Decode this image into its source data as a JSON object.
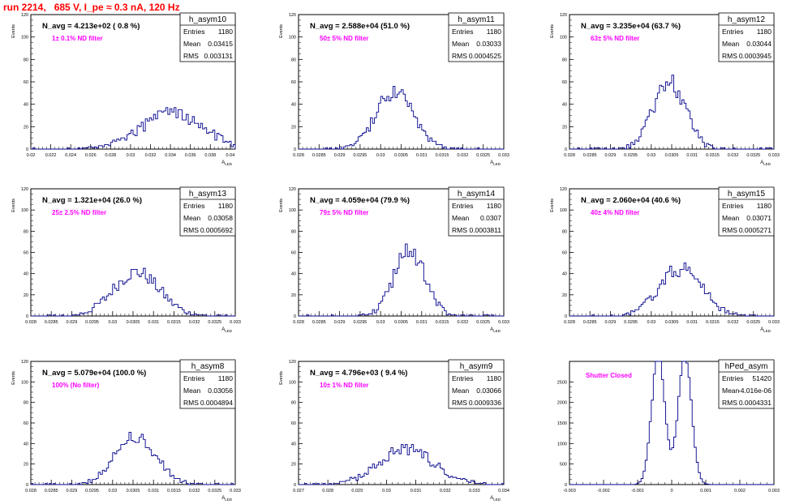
{
  "title": "run 2214,   685 V, I_pe ≈ 0.3 nA, 120 Hz",
  "chart_data": [
    {
      "type": "histogram",
      "name": "h_asym10",
      "nlabel": "N_avg = 4.213e+02 ( 0.8 %)",
      "filter": "1± 0.1% ND filter",
      "stats": {
        "Entries": "1180",
        "Mean": "0.03415",
        "RMS": "0.003131"
      },
      "xlabel": "A_LED",
      "ylabel": "Events",
      "xlim": [
        0.02,
        0.0405
      ],
      "ylim": [
        0,
        120
      ],
      "xticks": [
        "0.02",
        "0.022",
        "0.024",
        "0.026",
        "0.028",
        "0.03",
        "0.032",
        "0.034",
        "0.036",
        "0.038",
        "0.04"
      ],
      "yticks": [
        "0",
        "20",
        "40",
        "60",
        "80",
        "100",
        "120"
      ],
      "mean": 0.03415,
      "rms": 0.003131,
      "entries": 1180,
      "nbins": 100
    },
    {
      "type": "histogram",
      "name": "h_asym11",
      "nlabel": "N_avg = 2.588e+04 (51.0 %)",
      "filter": "50± 5% ND filter",
      "stats": {
        "Entries": "1180",
        "Mean": "0.03033",
        "RMS": "0.0004525"
      },
      "xlabel": "A_LED",
      "ylabel": "Events",
      "xlim": [
        0.028,
        0.033
      ],
      "ylim": [
        0,
        120
      ],
      "xticks": [
        "0.028",
        "0.0285",
        "0.029",
        "0.0295",
        "0.03",
        "0.0305",
        "0.031",
        "0.0315",
        "0.032",
        "0.0325",
        "0.033"
      ],
      "yticks": [
        "0",
        "20",
        "40",
        "60",
        "80",
        "100",
        "120"
      ],
      "mean": 0.03033,
      "rms": 0.0004525,
      "entries": 1180,
      "nbins": 100
    },
    {
      "type": "histogram",
      "name": "h_asym12",
      "nlabel": "N_avg = 3.235e+04 (63.7 %)",
      "filter": "63± 5% ND filter",
      "stats": {
        "Entries": "1180",
        "Mean": "0.03044",
        "RMS": "0.0003945"
      },
      "xlabel": "A_LED",
      "ylabel": "Events",
      "xlim": [
        0.028,
        0.033
      ],
      "ylim": [
        0,
        120
      ],
      "xticks": [
        "0.028",
        "0.0285",
        "0.029",
        "0.0295",
        "0.03",
        "0.0305",
        "0.031",
        "0.0315",
        "0.032",
        "0.0325",
        "0.033"
      ],
      "yticks": [
        "0",
        "20",
        "40",
        "60",
        "80",
        "100",
        "120"
      ],
      "mean": 0.03044,
      "rms": 0.0003945,
      "entries": 1180,
      "nbins": 100
    },
    {
      "type": "histogram",
      "name": "h_asym13",
      "nlabel": "N_avg = 1.321e+04 (26.0 %)",
      "filter": "25± 2.5% ND filter",
      "stats": {
        "Entries": "1180",
        "Mean": "0.03058",
        "RMS": "0.0005692"
      },
      "xlabel": "A_LED",
      "ylabel": "Events",
      "xlim": [
        0.028,
        0.033
      ],
      "ylim": [
        0,
        120
      ],
      "xticks": [
        "0.028",
        "0.0285",
        "0.029",
        "0.0295",
        "0.03",
        "0.0305",
        "0.031",
        "0.0315",
        "0.032",
        "0.0325",
        "0.033"
      ],
      "yticks": [
        "0",
        "20",
        "40",
        "60",
        "80",
        "100",
        "120"
      ],
      "mean": 0.03058,
      "rms": 0.0005692,
      "entries": 1180,
      "nbins": 100
    },
    {
      "type": "histogram",
      "name": "h_asym14",
      "nlabel": "N_avg = 4.059e+04 (79.9 %)",
      "filter": "79± 5% ND filter",
      "stats": {
        "Entries": "1180",
        "Mean": "0.0307",
        "RMS": "0.0003811"
      },
      "xlabel": "A_LED",
      "ylabel": "Events",
      "xlim": [
        0.028,
        0.033
      ],
      "ylim": [
        0,
        120
      ],
      "xticks": [
        "0.028",
        "0.0285",
        "0.029",
        "0.0295",
        "0.03",
        "0.0305",
        "0.031",
        "0.0315",
        "0.032",
        "0.0325",
        "0.033"
      ],
      "yticks": [
        "0",
        "20",
        "40",
        "60",
        "80",
        "100",
        "120"
      ],
      "mean": 0.0307,
      "rms": 0.0003811,
      "entries": 1180,
      "nbins": 100
    },
    {
      "type": "histogram",
      "name": "h_asym15",
      "nlabel": "N_avg = 2.060e+04 (40.6 %)",
      "filter": "40± 4% ND filter",
      "stats": {
        "Entries": "1180",
        "Mean": "0.03071",
        "RMS": "0.0005271"
      },
      "xlabel": "A_LED",
      "ylabel": "Events",
      "xlim": [
        0.028,
        0.033
      ],
      "ylim": [
        0,
        120
      ],
      "xticks": [
        "0.028",
        "0.0285",
        "0.029",
        "0.0295",
        "0.03",
        "0.0305",
        "0.031",
        "0.0315",
        "0.032",
        "0.0325",
        "0.033"
      ],
      "yticks": [
        "0",
        "20",
        "40",
        "60",
        "80",
        "100",
        "120"
      ],
      "mean": 0.03071,
      "rms": 0.0005271,
      "entries": 1180,
      "nbins": 100
    },
    {
      "type": "histogram",
      "name": "h_asym8",
      "nlabel": "N_avg = 5.079e+04 (100.0 %)",
      "filter": "100% (No filter)",
      "stats": {
        "Entries": "1180",
        "Mean": "0.03056",
        "RMS": "0.0004894"
      },
      "xlabel": "A_LED",
      "ylabel": "Events",
      "xlim": [
        0.028,
        0.033
      ],
      "ylim": [
        0,
        120
      ],
      "xticks": [
        "0.028",
        "0.0285",
        "0.029",
        "0.0295",
        "0.03",
        "0.0305",
        "0.031",
        "0.0315",
        "0.032",
        "0.0325",
        "0.033"
      ],
      "yticks": [
        "0",
        "20",
        "40",
        "60",
        "80",
        "100",
        "120"
      ],
      "mean": 0.03056,
      "rms": 0.0004894,
      "entries": 1180,
      "nbins": 100
    },
    {
      "type": "histogram",
      "name": "h_asym9",
      "nlabel": "N_avg = 4.796e+03 ( 9.4 %)",
      "filter": "10± 1% ND filter",
      "stats": {
        "Entries": "1180",
        "Mean": "0.03066",
        "RMS": "0.0009336"
      },
      "xlabel": "A_LED",
      "ylabel": "Events",
      "xlim": [
        0.027,
        0.034
      ],
      "ylim": [
        0,
        120
      ],
      "xticks": [
        "0.027",
        "0.028",
        "0.029",
        "0.03",
        "0.031",
        "0.032",
        "0.033",
        "0.034"
      ],
      "yticks": [
        "0",
        "20",
        "40",
        "60",
        "80",
        "100",
        "120"
      ],
      "mean": 0.03066,
      "rms": 0.0009336,
      "entries": 1180,
      "nbins": 100
    },
    {
      "type": "histogram",
      "name": "hPed_asym",
      "nlabel": "",
      "filter": "Shutter Closed",
      "stats": {
        "Entries": "51420",
        "Mean": "-4.016e-06",
        "RMS": "0.0004331"
      },
      "xlabel": "",
      "ylabel": "",
      "xlim": [
        -0.003,
        0.003
      ],
      "ylim": [
        0,
        3000
      ],
      "xticks": [
        "-0.003",
        "-0.002",
        "-0.001",
        "0",
        "0.001",
        "0.002",
        "0.003"
      ],
      "yticks": [
        "0",
        "500",
        "1000",
        "1500",
        "2000",
        "2500"
      ],
      "mean": -4.016e-06,
      "rms": 0.0004331,
      "entries": 51420,
      "nbins": 100,
      "bimodal": true
    }
  ],
  "colors": {
    "hist_line": "#00008b",
    "title": "#ff0000",
    "filter_label": "#ff00ff",
    "frame": "#000000"
  }
}
